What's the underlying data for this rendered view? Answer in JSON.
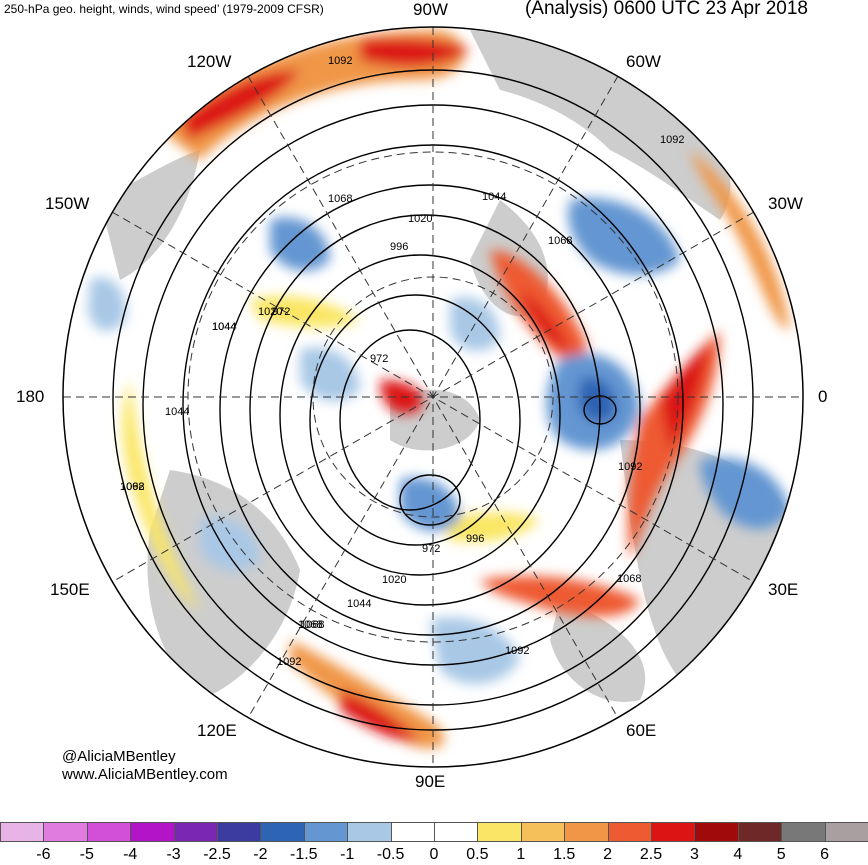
{
  "header": {
    "title_left": "250-hPa geo. height, winds, wind speed’ (1979-2009 CFSR)",
    "title_right": "(Analysis) 0600 UTC 23 Apr 2018"
  },
  "longitude_labels": {
    "n90w": "90W",
    "n120w": "120W",
    "n60w": "60W",
    "n150w": "150W",
    "n30w": "30W",
    "n180": "180",
    "n0": "0",
    "n150e": "150E",
    "n30e": "30E",
    "n120e": "120E",
    "n60e": "60E",
    "n90e": "90E"
  },
  "contour_labels": [
    "1092",
    "1068",
    "1044",
    "1020",
    "996",
    "972",
    "1068",
    "1092",
    "1044",
    "1020",
    "996",
    "972",
    "1044",
    "1068",
    "1092",
    "1068",
    "1044",
    "1020",
    "1092",
    "1092",
    "1068",
    "972",
    "1068",
    "1044",
    "1092"
  ],
  "credits": {
    "handle": "@AliciaMBentley",
    "website": "www.AliciaMBentley.com"
  },
  "colorbar": {
    "labels": [
      "-6",
      "-5",
      "-4",
      "-3",
      "-2.5",
      "-2",
      "-1.5",
      "-1",
      "-0.5",
      "0",
      "0.5",
      "1",
      "1.5",
      "2",
      "2.5",
      "3",
      "4",
      "5",
      "6"
    ],
    "colors": [
      "#e8b4e8",
      "#e07be0",
      "#d24fd8",
      "#b414c8",
      "#7a28b4",
      "#3c3ca0",
      "#2e64b4",
      "#6496d2",
      "#a8c8e6",
      "#ffffff",
      "#ffffff",
      "#fae664",
      "#f5c05a",
      "#f09646",
      "#ee5a32",
      "#dc1414",
      "#a00a0a",
      "#6e2828",
      "#787878",
      "#a8a0a0"
    ]
  },
  "colors": {
    "land": "#c8c8c8",
    "strong_positive": "#dc1414",
    "positive": "#f09646",
    "weak_positive": "#fae664",
    "weak_negative": "#a8c8e6",
    "negative": "#6496d2",
    "strong_negative": "#2e64b4"
  }
}
